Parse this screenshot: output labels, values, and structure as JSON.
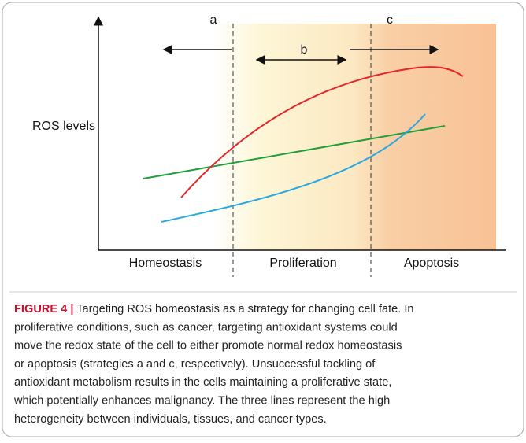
{
  "figure": {
    "axis_label": "ROS levels",
    "regions": [
      "Homeostasis",
      "Proliferation",
      "Apoptosis"
    ],
    "arrows": [
      "a",
      "b",
      "c"
    ],
    "caption": {
      "label": "FIGURE 4 |",
      "lines": [
        " Targeting ROS homeostasis as a strategy for changing cell fate. In",
        "proliferative conditions, such as cancer, targeting antioxidant systems could",
        "move the redox state of the cell to either promote normal redox homeostasis",
        "or apoptosis (strategies a and c, respectively). Unsuccessful tackling of",
        "antioxidant metabolism results in the cells maintaining a proliferative state,",
        "which potentially enhances malignancy. The three lines represent the high",
        "heterogeneity between individuals, tissues, and cancer types."
      ]
    }
  }
}
